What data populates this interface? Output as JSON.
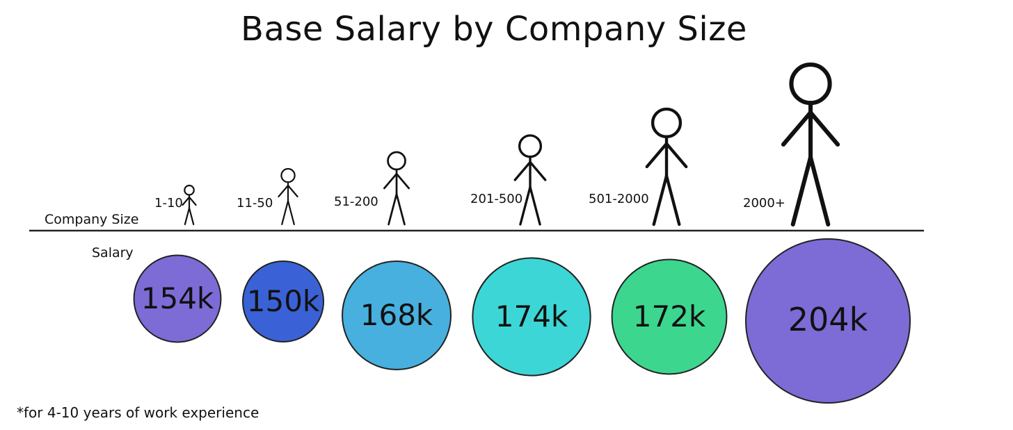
{
  "chart_data": {
    "type": "bubble",
    "title": "Base Salary by Company Size",
    "row_labels": {
      "company_size": "Company Size",
      "salary": "Salary"
    },
    "categories": [
      "1-10",
      "11-50",
      "51-200",
      "201-500",
      "501-2000",
      "2000+"
    ],
    "values": [
      154,
      150,
      168,
      174,
      172,
      204
    ],
    "value_labels": [
      "154k",
      "150k",
      "168k",
      "174k",
      "172k",
      "204k"
    ],
    "value_unit": "k",
    "colors": [
      "#7d6bd6",
      "#3a62d6",
      "#47b0de",
      "#3dd6d6",
      "#3dd68f",
      "#7d6bd6"
    ],
    "footnote": "*for 4-10 years of work experience"
  }
}
